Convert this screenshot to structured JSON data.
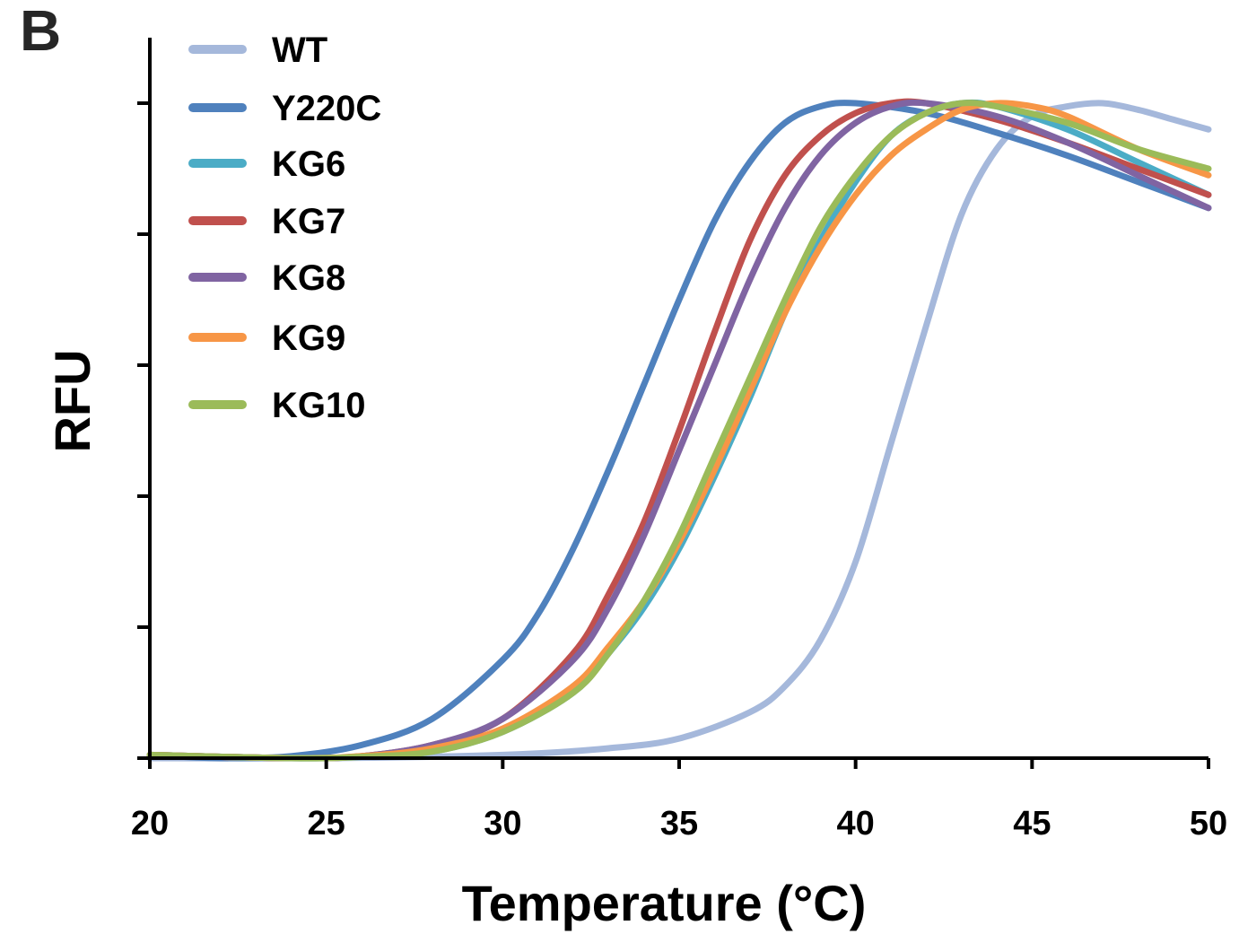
{
  "panel_label": "B",
  "chart_data": {
    "type": "line",
    "xlabel": "Temperature (°C)",
    "ylabel": "RFU",
    "xlim": [
      20,
      50
    ],
    "ylim": [
      0,
      1
    ],
    "x_ticks": [
      20,
      25,
      30,
      35,
      40,
      45,
      50
    ],
    "x_tick_labels": [
      "20",
      "25",
      "30",
      "35",
      "40",
      "45",
      "50"
    ],
    "y_ticks": [
      0,
      0.2,
      0.4,
      0.6,
      0.8,
      1.0
    ],
    "grid": false,
    "legend_position": "top-left",
    "series": [
      {
        "name": "WT",
        "color": "#a5b8db",
        "x": [
          20,
          25,
          30,
          33,
          35,
          37,
          38,
          39,
          40,
          41,
          42,
          43,
          44,
          45,
          46,
          47,
          48,
          49,
          50
        ],
        "y": [
          0,
          0,
          0.005,
          0.015,
          0.03,
          0.07,
          0.11,
          0.18,
          0.3,
          0.48,
          0.66,
          0.83,
          0.93,
          0.98,
          0.995,
          1.0,
          0.99,
          0.975,
          0.96
        ]
      },
      {
        "name": "Y220C",
        "color": "#4f81bd",
        "x": [
          20,
          22,
          24,
          26,
          28,
          30,
          31,
          32,
          33,
          34,
          35,
          36,
          37,
          38,
          39,
          40,
          42,
          44,
          46,
          48,
          50
        ],
        "y": [
          0.005,
          0,
          0.003,
          0.02,
          0.06,
          0.15,
          0.22,
          0.32,
          0.44,
          0.57,
          0.7,
          0.82,
          0.91,
          0.97,
          0.995,
          1.0,
          0.985,
          0.955,
          0.92,
          0.88,
          0.84
        ]
      },
      {
        "name": "KG6",
        "color": "#4bacc6",
        "x": [
          20,
          24,
          26,
          28,
          30,
          32,
          33,
          34,
          35,
          36,
          37,
          38,
          39,
          40,
          41,
          42,
          43,
          44,
          46,
          48,
          50
        ],
        "y": [
          0.005,
          0,
          0.002,
          0.01,
          0.04,
          0.1,
          0.16,
          0.23,
          0.32,
          0.43,
          0.55,
          0.68,
          0.79,
          0.88,
          0.95,
          0.985,
          1.0,
          0.995,
          0.96,
          0.91,
          0.86
        ]
      },
      {
        "name": "KG7",
        "color": "#c0504d",
        "x": [
          20,
          24,
          26,
          28,
          30,
          32,
          33,
          34,
          35,
          36,
          37,
          38,
          39,
          40,
          41,
          42,
          44,
          46,
          48,
          50
        ],
        "y": [
          0.005,
          0,
          0.003,
          0.02,
          0.06,
          0.16,
          0.25,
          0.36,
          0.5,
          0.65,
          0.79,
          0.89,
          0.95,
          0.985,
          1.0,
          1.0,
          0.975,
          0.94,
          0.9,
          0.86
        ]
      },
      {
        "name": "KG8",
        "color": "#8064a2",
        "x": [
          20,
          24,
          26,
          28,
          30,
          32,
          33,
          34,
          35,
          36,
          37,
          38,
          39,
          40,
          41,
          42,
          44,
          46,
          48,
          50
        ],
        "y": [
          0.005,
          0,
          0.003,
          0.02,
          0.06,
          0.15,
          0.23,
          0.34,
          0.47,
          0.6,
          0.73,
          0.84,
          0.92,
          0.97,
          0.995,
          1.0,
          0.98,
          0.94,
          0.89,
          0.84
        ]
      },
      {
        "name": "KG9",
        "color": "#f79646",
        "x": [
          20,
          24,
          26,
          28,
          30,
          32,
          33,
          34,
          35,
          36,
          37,
          38,
          39,
          40,
          41,
          42,
          43,
          44,
          45,
          46,
          48,
          50
        ],
        "y": [
          0.005,
          0,
          0.003,
          0.015,
          0.045,
          0.11,
          0.17,
          0.24,
          0.33,
          0.44,
          0.56,
          0.68,
          0.78,
          0.86,
          0.92,
          0.96,
          0.99,
          1.0,
          0.995,
          0.98,
          0.93,
          0.89
        ]
      },
      {
        "name": "KG10",
        "color": "#9bbb59",
        "x": [
          20,
          24,
          26,
          28,
          30,
          32,
          33,
          34,
          35,
          36,
          37,
          38,
          39,
          40,
          41,
          42,
          43,
          44,
          46,
          48,
          50
        ],
        "y": [
          0.005,
          0,
          0.002,
          0.01,
          0.04,
          0.1,
          0.16,
          0.24,
          0.34,
          0.46,
          0.58,
          0.7,
          0.81,
          0.89,
          0.95,
          0.985,
          1.0,
          0.995,
          0.97,
          0.93,
          0.9
        ]
      }
    ]
  }
}
